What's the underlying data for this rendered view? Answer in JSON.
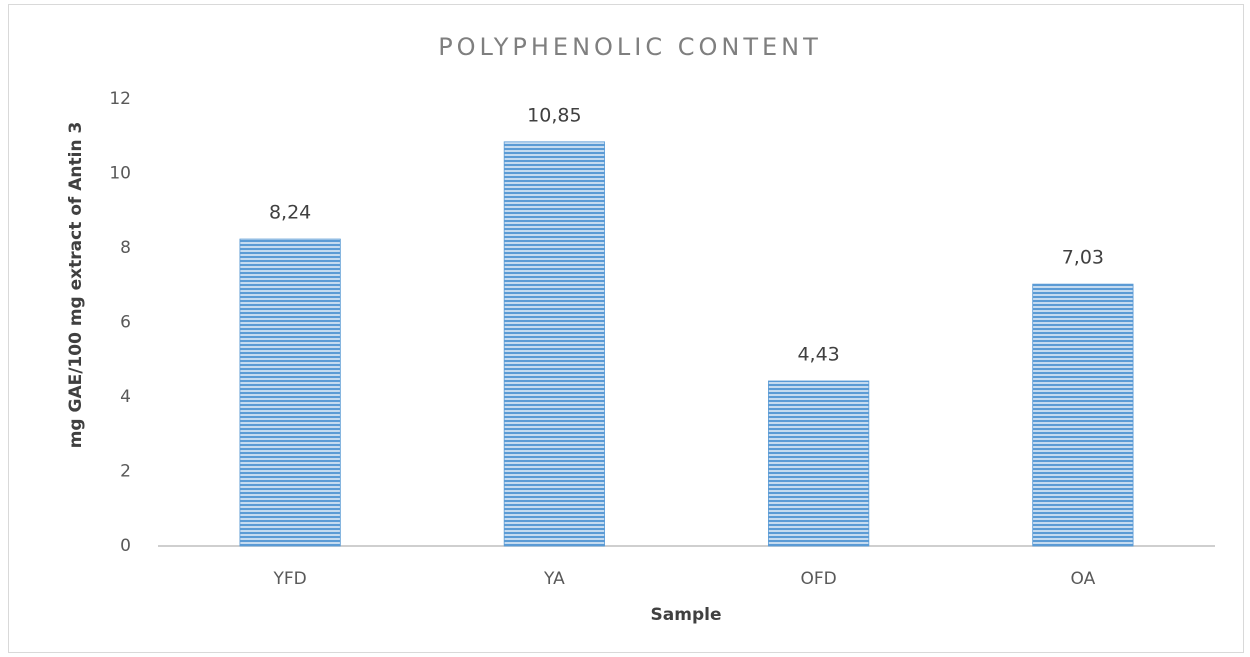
{
  "chart_data": {
    "type": "bar",
    "title": "POLYPHENOLIC CONTENT",
    "x_label": "Sample",
    "y_label": "mg GAE/100 mg extract of Antin 3",
    "categories": [
      "YFD",
      "YA",
      "OFD",
      "OA"
    ],
    "values": [
      8.24,
      10.85,
      4.43,
      7.03
    ],
    "value_labels": [
      "8,24",
      "10,85",
      "4,43",
      "7,03"
    ],
    "color": "#5b9bd5",
    "ylim": [
      0,
      12
    ],
    "yticks": [
      0,
      2,
      4,
      6,
      8,
      10,
      12
    ],
    "grid": false
  }
}
